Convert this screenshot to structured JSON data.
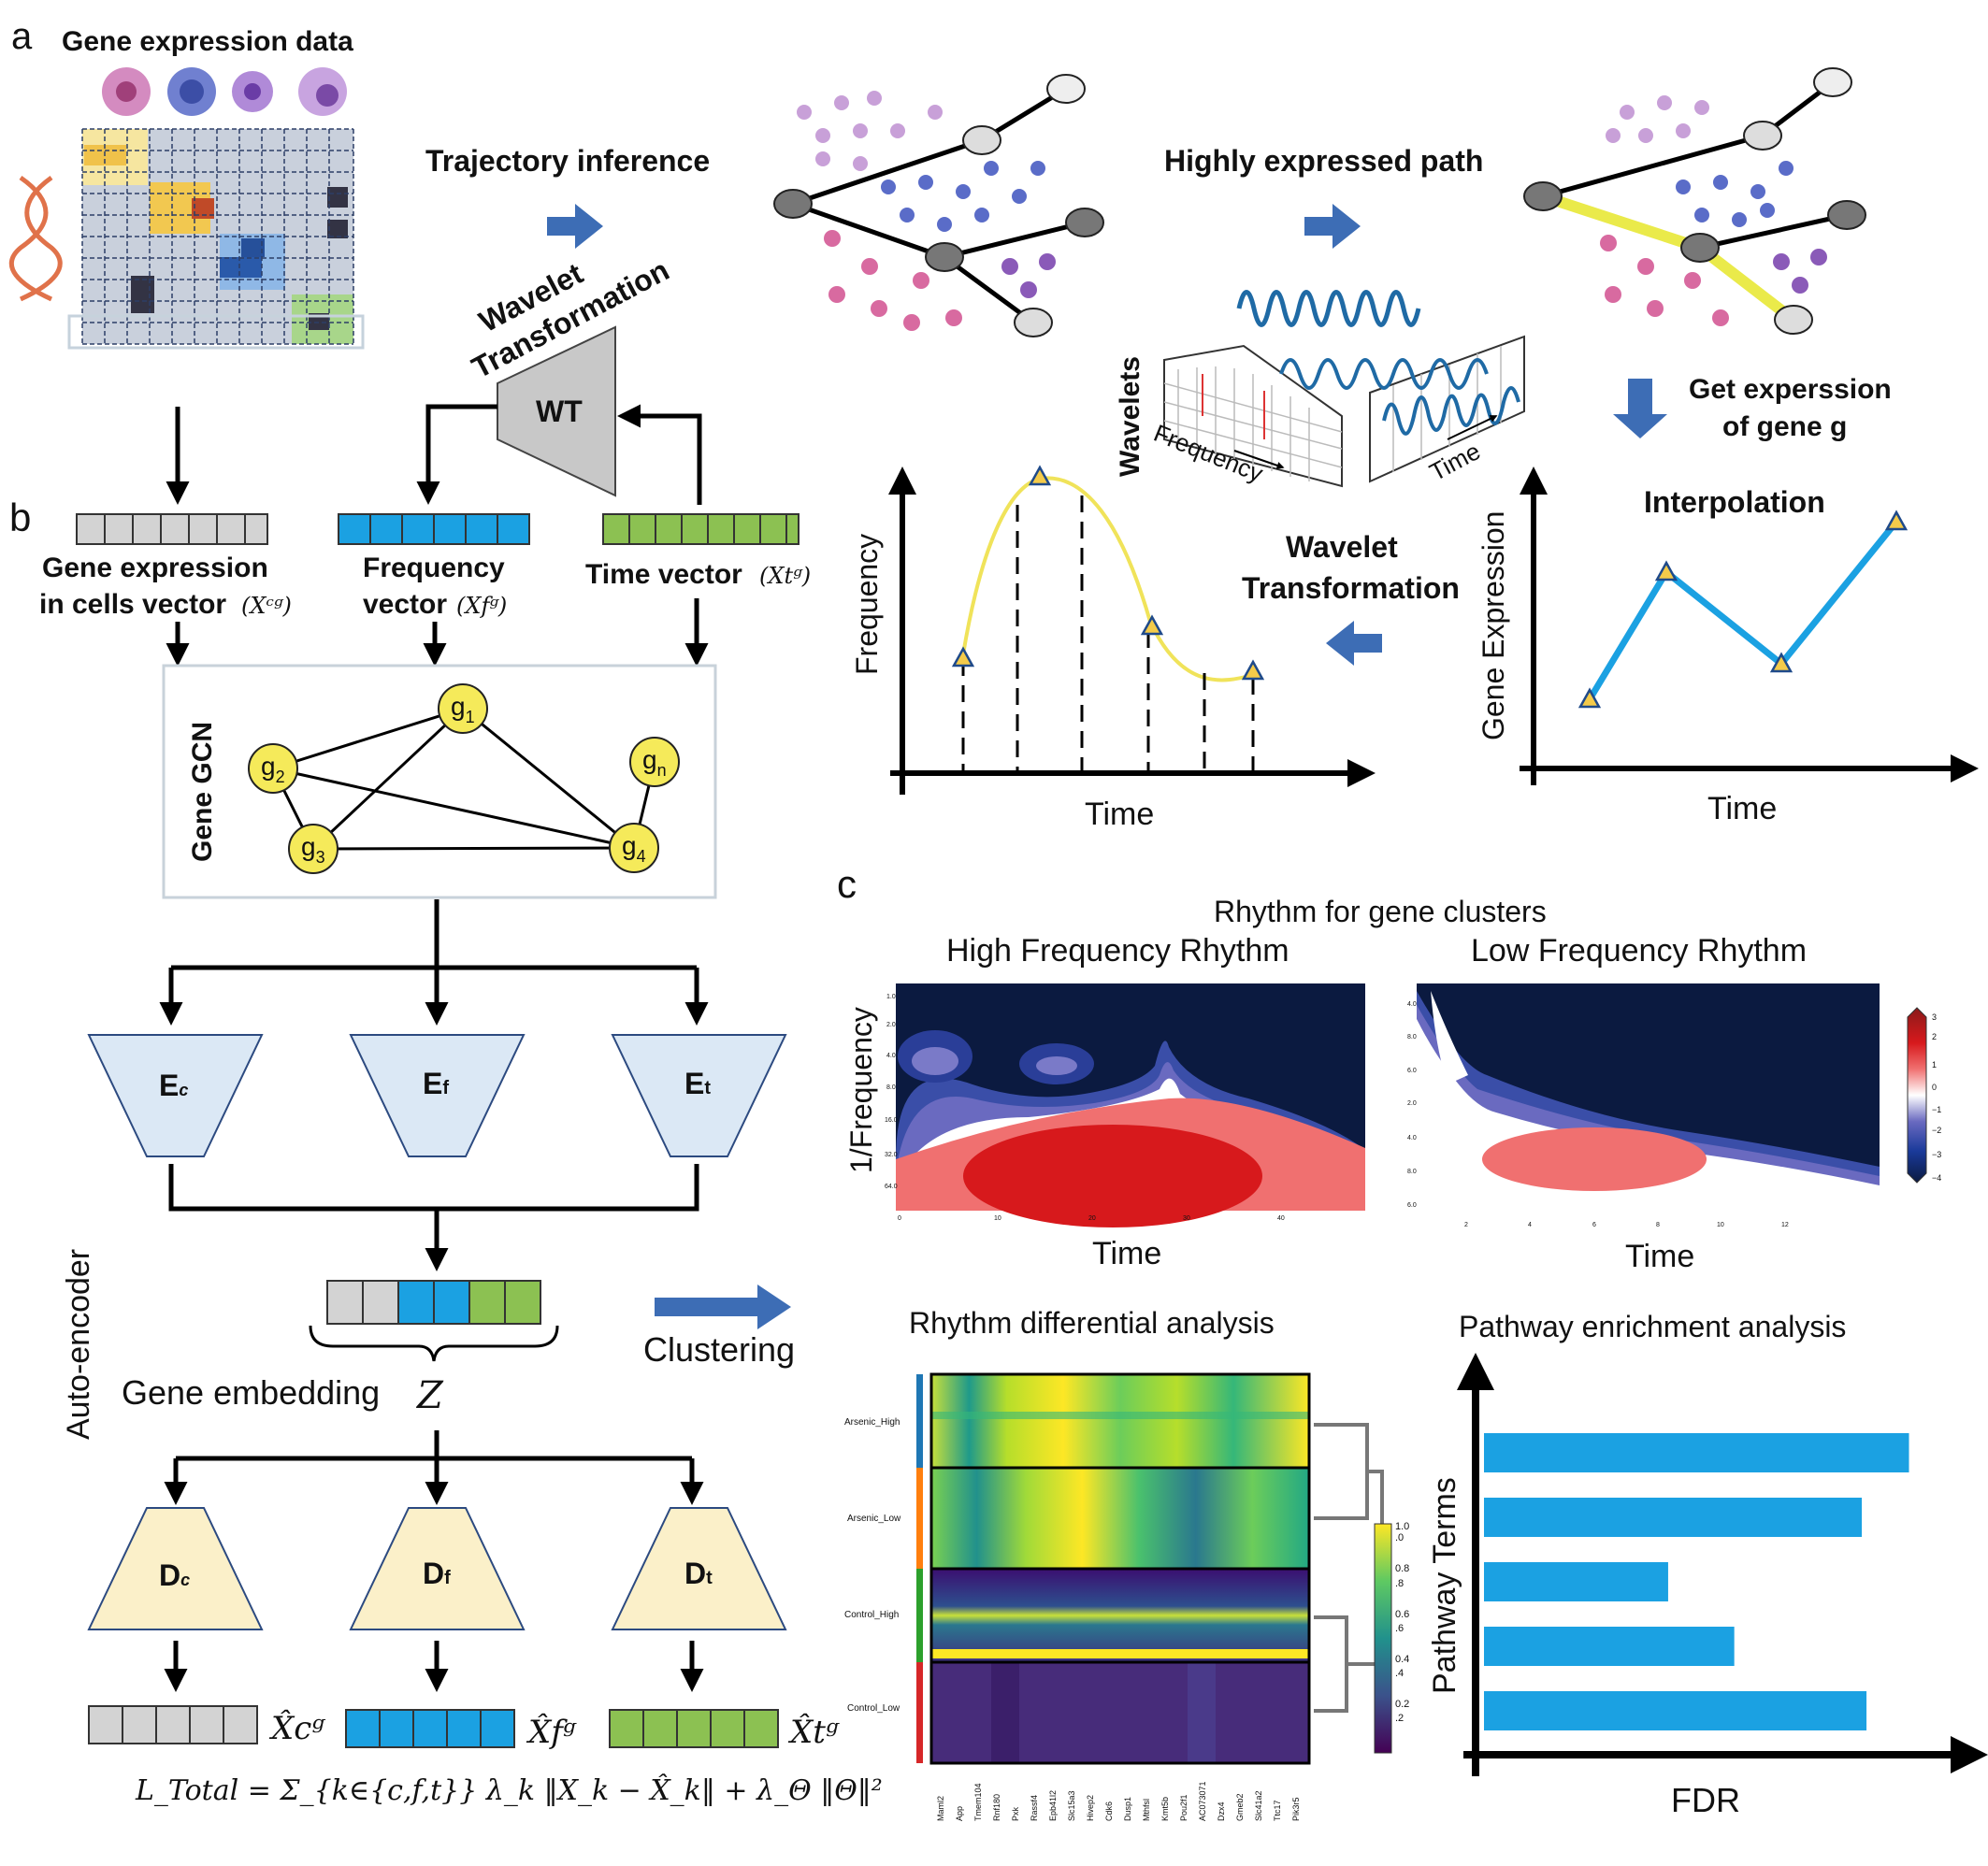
{
  "panel_a": {
    "letter": "a",
    "title": "Gene expression data",
    "trajectory_label": "Trajectory inference",
    "highly_expressed_label": "Highly expressed path",
    "wavelet_rotated_line1": "Wavelet",
    "wavelet_rotated_line2": "Transformation",
    "wt_label": "WT",
    "wavelets_label": "Wavelets",
    "frequency_axis": "Frequency",
    "time_axis": "Time",
    "get_expression_line1": "Get experssion",
    "get_expression_line2": "of gene g",
    "interpolation_label": "Interpolation",
    "gene_expression_axis": "Gene Expression",
    "wavelet_tr_line1": "Wavelet",
    "wavelet_tr_line2": "Transformation",
    "freq_plot_y": "Frequency",
    "freq_plot_x": "Time",
    "interp_plot_x": "Time"
  },
  "panel_b": {
    "letter": "b",
    "cells_vector_line1": "Gene expression",
    "cells_vector_line2": "in cells vector",
    "cells_vector_sym": "(Xᶜᵍ)",
    "freq_vector_line1": "Frequency",
    "freq_vector_line2": "vector",
    "freq_vector_sym": "(Xfᵍ)",
    "time_vector_label": "Time vector",
    "time_vector_sym": "(Xtᵍ)",
    "gcn_label": "Gene GCN",
    "nodes": [
      {
        "base": "g",
        "sub": "1"
      },
      {
        "base": "g",
        "sub": "2"
      },
      {
        "base": "g",
        "sub": "n"
      },
      {
        "base": "g",
        "sub": "3"
      },
      {
        "base": "g",
        "sub": "4"
      }
    ],
    "encoders": [
      {
        "base": "E",
        "sub": "c"
      },
      {
        "base": "E",
        "sub": "f"
      },
      {
        "base": "E",
        "sub": "t"
      }
    ],
    "decoders": [
      {
        "base": "D",
        "sub": "c"
      },
      {
        "base": "D",
        "sub": "f"
      },
      {
        "base": "D",
        "sub": "t"
      }
    ],
    "autoencoder_label": "Auto-encoder",
    "embedding_label": "Gene embedding",
    "embedding_sym": "Z",
    "clustering_label": "Clustering",
    "recon_syms": [
      "X̂cᵍ",
      "X̂fᵍ",
      "X̂tᵍ"
    ],
    "loss_formula": "L_Total = Σ_{k∈{c,f,t}} λ_k ‖X_k − X̂_k‖ + λ_Θ ‖Θ‖²"
  },
  "panel_c": {
    "letter": "c",
    "rhythm_title": "Rhythm for gene clusters",
    "high_title": "High Frequency Rhythm",
    "low_title": "Low Frequency Rhythm",
    "inv_freq_label": "1/Frequency",
    "time_label_left": "Time",
    "time_label_right": "Time",
    "high_y_ticks": [
      "1.0",
      "2.0",
      "4.0",
      "8.0",
      "16.0",
      "32.0",
      "64.0"
    ],
    "high_x_ticks": [
      "0",
      "10",
      "20",
      "30",
      "40"
    ],
    "low_y_ticks": [
      "4.0",
      "8.0",
      "6.0",
      "2.0",
      "4.0",
      "8.0",
      "6.0"
    ],
    "low_x_ticks": [
      "2",
      "4",
      "6",
      "8",
      "10",
      "12"
    ],
    "colorbar_ticks": [
      "3",
      "2",
      "1",
      "0",
      "−1",
      "−2",
      "−3",
      "−4"
    ],
    "diff_title": "Rhythm differential analysis",
    "heat_rows": [
      "Arsenic_High",
      "Arsenic_Low",
      "Control_High",
      "Control_Low"
    ],
    "heat_genes": [
      "Maml2",
      "App",
      "Tmem104",
      "Rnf180",
      "Pxk",
      "Rassf4",
      "Epb41l2",
      "Slc15a3",
      "Hivep2",
      "Cdk6",
      "Dusp1",
      "Mthfsl",
      "Kmt5b",
      "Pou2f1",
      "AC073071",
      "Dzx4",
      "Gmeb2",
      "Slc41a2",
      "Ttc17",
      "Pik3r5"
    ],
    "heat_cbar_ticks": [
      "1.0",
      ".0",
      "0.8",
      ".8",
      "0.6",
      ".6",
      "0.4",
      ".4",
      "0.2",
      ".2"
    ],
    "pathway_title": "Pathway enrichment analysis",
    "pathway_y": "Pathway Terms",
    "pathway_x": "FDR"
  },
  "chart_data": {
    "type": "bar",
    "title": "Pathway enrichment analysis",
    "xlabel": "FDR",
    "ylabel": "Pathway Terms",
    "orientation": "horizontal",
    "values": [
      0.9,
      0.8,
      0.39,
      0.53,
      0.81
    ],
    "color": "#1ba1e2"
  },
  "colors": {
    "grey_vec": "#d3d3d3",
    "blue_vec": "#1ba1e2",
    "green_vec": "#8cc152",
    "encoder_fill": "#dbe8f5",
    "decoder_fill": "#fbf0c9",
    "node_fill": "#f5ea5a",
    "arrow_blue": "#3d6db5",
    "yellow_curve": "#f0e35a",
    "path_highlight": "#eaea4a"
  }
}
